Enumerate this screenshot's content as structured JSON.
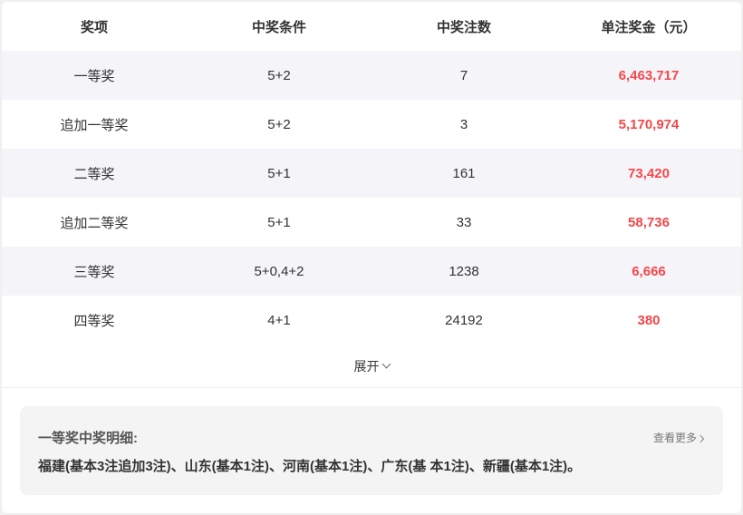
{
  "table": {
    "headers": [
      "奖项",
      "中奖条件",
      "中奖注数",
      "单注奖金（元）"
    ],
    "rows": [
      {
        "name": "一等奖",
        "cond": "5+2",
        "count": "7",
        "prize": "6,463,717"
      },
      {
        "name": "追加一等奖",
        "cond": "5+2",
        "count": "3",
        "prize": "5,170,974"
      },
      {
        "name": "二等奖",
        "cond": "5+1",
        "count": "161",
        "prize": "73,420"
      },
      {
        "name": "追加二等奖",
        "cond": "5+1",
        "count": "33",
        "prize": "58,736"
      },
      {
        "name": "三等奖",
        "cond": "5+0,4+2",
        "count": "1238",
        "prize": "6,666"
      },
      {
        "name": "四等奖",
        "cond": "4+1",
        "count": "24192",
        "prize": "380"
      }
    ]
  },
  "expand_label": "展开",
  "detail": {
    "title": "一等奖中奖明细:",
    "more_label": "查看更多",
    "text": "福建(基本3注追加3注)、山东(基本1注)、河南(基本1注)、广东(基 本1注)、新疆(基本1注)。"
  },
  "colors": {
    "prize": "#f5474b",
    "alt_row": "#f5f5f9"
  }
}
